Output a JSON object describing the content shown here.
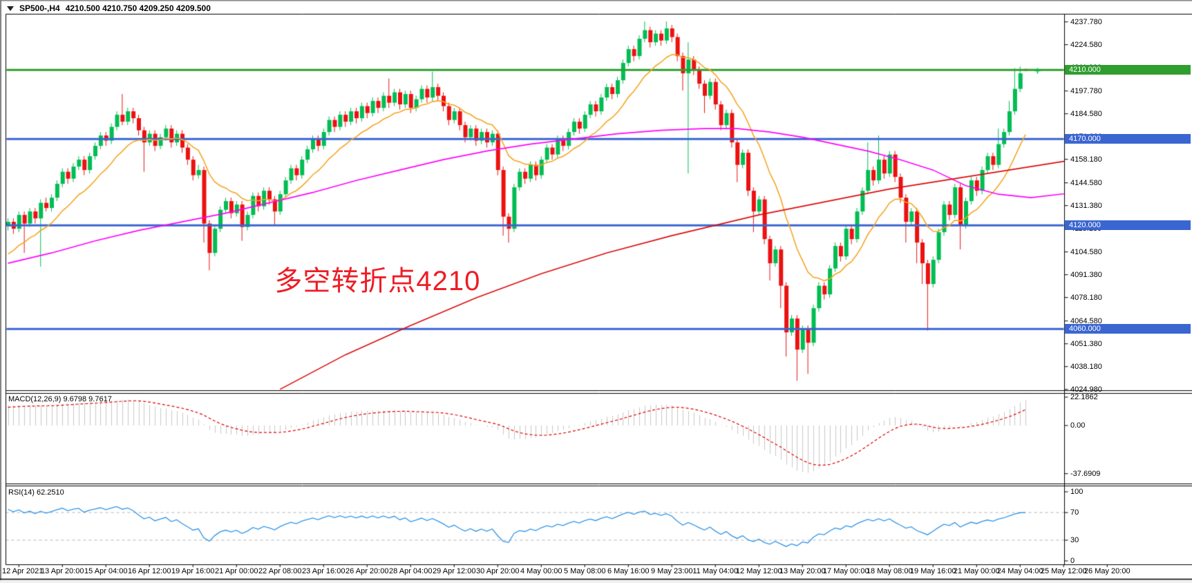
{
  "window": {
    "menu_icon": "chart-menu-triangle",
    "title_symbol": "SP500-,H4",
    "title_ohlc": "4210.500 4210.750 4209.250 4209.500"
  },
  "colors": {
    "up_candle": "#00bd53",
    "down_candle": "#ec1111",
    "hline_green": "#2f9e2f",
    "hline_blue": "#3a66d1",
    "ma_orange": "#f5a623",
    "ma_magenta": "#ff00ff",
    "ma_red": "#dd0a0a",
    "macd_hist": "#c8c8c8",
    "macd_signal": "#e00000",
    "rsi_line": "#2e95e8",
    "rsi_level_dash": "#b4b4b4",
    "annotation_red": "#ee1c25",
    "axis_text": "#000000",
    "pane_border": "#000000",
    "window_edge": "#808080",
    "bottom_strip": "#f0f0f0"
  },
  "chart_data": {
    "type": "candlestick",
    "symbol": "SP500-",
    "timeframe": "H4",
    "title": "SP500-,H4  4210.500 4210.750 4209.250 4209.500",
    "x_labels": [
      "12 Apr 2021",
      "13 Apr 20:00",
      "15 Apr 04:00",
      "16 Apr 12:00",
      "19 Apr 16:00",
      "21 Apr 00:00",
      "22 Apr 08:00",
      "23 Apr 16:00",
      "26 Apr 20:00",
      "28 Apr 04:00",
      "29 Apr 12:00",
      "30 Apr 20:00",
      "4 May 00:00",
      "5 May 08:00",
      "6 May 16:00",
      "9 May 23:00",
      "11 May 04:00",
      "12 May 12:00",
      "13 May 20:00",
      "17 May 00:00",
      "18 May 08:00",
      "19 May 16:00",
      "21 May 00:00",
      "24 May 04:00",
      "25 May 12:00",
      "26 May 20:00"
    ],
    "y_ticks": [
      4237.78,
      4224.58,
      4211.38,
      4197.78,
      4184.58,
      4171.38,
      4158.18,
      4144.58,
      4131.38,
      4118.18,
      4104.58,
      4091.38,
      4078.18,
      4064.58,
      4051.38,
      4038.18,
      4024.98
    ],
    "y_axis_range": {
      "top": 4246.4,
      "bottom": 4024.4
    },
    "hlines": [
      {
        "price": 4210.0,
        "label": "4210.000",
        "color": "#2f9e2f"
      },
      {
        "price": 4170.0,
        "label": "4170.000",
        "color": "#3a66d1"
      },
      {
        "price": 4120.0,
        "label": "4120.000",
        "color": "#3a66d1"
      },
      {
        "price": 4060.0,
        "label": "4060.000",
        "color": "#3a66d1"
      }
    ],
    "annotation": {
      "text": "多空转折点4210",
      "color": "#ee1c25",
      "bar": 49,
      "price": 4100
    },
    "current_price_marker": {
      "price": 4209.5,
      "color": "#00bd53"
    },
    "indicator_preroll_closes": [
      4037,
      4045.6,
      4042.2,
      4050.8,
      4047.4,
      4056,
      4052.6,
      4061.2,
      4057.8,
      4066.4,
      4063,
      4071.6,
      4068.2,
      4076.8,
      4073.4,
      4082,
      4078.6,
      4087.2,
      4083.8,
      4092.4,
      4089,
      4097.6,
      4094.2,
      4102.8,
      4099.4,
      4108,
      4104.6,
      4113.2,
      4109.8,
      4118.4
    ],
    "ma_lines": {
      "orange": {
        "type": "ema",
        "period": 13,
        "color": "#f5a623"
      },
      "magenta": {
        "type": "points",
        "color": "#ff00ff",
        "points": [
          [
            0,
            4098
          ],
          [
            8,
            4104
          ],
          [
            16,
            4111
          ],
          [
            24,
            4117
          ],
          [
            32,
            4122
          ],
          [
            40,
            4127
          ],
          [
            48,
            4133
          ],
          [
            56,
            4139
          ],
          [
            64,
            4146
          ],
          [
            72,
            4152
          ],
          [
            80,
            4158
          ],
          [
            88,
            4163
          ],
          [
            96,
            4167
          ],
          [
            104,
            4170
          ],
          [
            112,
            4173
          ],
          [
            120,
            4175
          ],
          [
            128,
            4176
          ],
          [
            134,
            4176
          ],
          [
            140,
            4174
          ],
          [
            146,
            4171
          ],
          [
            152,
            4167
          ],
          [
            158,
            4163
          ],
          [
            164,
            4158
          ],
          [
            170,
            4152
          ],
          [
            176,
            4143
          ],
          [
            182,
            4138
          ],
          [
            188,
            4136
          ],
          [
            196,
            4139
          ],
          [
            203,
            4143
          ]
        ]
      },
      "red": {
        "type": "points",
        "color": "#dd0a0a",
        "points": [
          [
            50,
            4025
          ],
          [
            62,
            4045
          ],
          [
            74,
            4062
          ],
          [
            86,
            4078
          ],
          [
            98,
            4092
          ],
          [
            110,
            4104
          ],
          [
            122,
            4114
          ],
          [
            130,
            4120
          ],
          [
            138,
            4126
          ],
          [
            146,
            4131
          ],
          [
            154,
            4136
          ],
          [
            162,
            4141
          ],
          [
            170,
            4145
          ],
          [
            178,
            4149
          ],
          [
            186,
            4153
          ],
          [
            194,
            4157
          ],
          [
            203,
            4161
          ]
        ]
      }
    },
    "candles": [
      [
        4120,
        4124,
        4117,
        4122
      ],
      [
        4122,
        4124,
        4115,
        4118
      ],
      [
        4118,
        4128,
        4116,
        4126
      ],
      [
        4126,
        4128,
        4104,
        4121
      ],
      [
        4121,
        4130,
        4119,
        4128
      ],
      [
        4128,
        4130,
        4121,
        4124
      ],
      [
        4124,
        4135,
        4096,
        4133
      ],
      [
        4133,
        4136,
        4128,
        4130
      ],
      [
        4130,
        4138,
        4128,
        4136
      ],
      [
        4136,
        4146,
        4134,
        4144
      ],
      [
        4144,
        4153,
        4142,
        4151
      ],
      [
        4151,
        4153,
        4144,
        4147
      ],
      [
        4147,
        4156,
        4145,
        4154
      ],
      [
        4154,
        4160,
        4152,
        4158
      ],
      [
        4158,
        4160,
        4149,
        4152
      ],
      [
        4152,
        4162,
        4150,
        4160
      ],
      [
        4160,
        4168,
        4158,
        4166
      ],
      [
        4166,
        4174,
        4164,
        4172
      ],
      [
        4172,
        4174,
        4166,
        4169
      ],
      [
        4169,
        4179,
        4167,
        4177
      ],
      [
        4177,
        4186,
        4175,
        4184
      ],
      [
        4184,
        4196,
        4178,
        4180
      ],
      [
        4180,
        4188,
        4178,
        4186
      ],
      [
        4186,
        4188,
        4179,
        4182
      ],
      [
        4182,
        4184,
        4172,
        4175
      ],
      [
        4175,
        4177,
        4151,
        4168
      ],
      [
        4168,
        4175,
        4166,
        4173
      ],
      [
        4173,
        4175,
        4163,
        4166
      ],
      [
        4166,
        4173,
        4164,
        4171
      ],
      [
        4171,
        4178,
        4169,
        4176
      ],
      [
        4176,
        4178,
        4165,
        4168
      ],
      [
        4168,
        4175,
        4166,
        4173
      ],
      [
        4173,
        4175,
        4162,
        4165
      ],
      [
        4165,
        4167,
        4155,
        4158
      ],
      [
        4158,
        4160,
        4146,
        4149
      ],
      [
        4149,
        4155,
        4147,
        4152
      ],
      [
        4152,
        4154,
        4110,
        4121
      ],
      [
        4121,
        4123,
        4094,
        4104
      ],
      [
        4104,
        4120,
        4102,
        4118
      ],
      [
        4118,
        4131,
        4116,
        4129
      ],
      [
        4129,
        4136,
        4127,
        4134
      ],
      [
        4134,
        4136,
        4124,
        4127
      ],
      [
        4127,
        4134,
        4125,
        4132
      ],
      [
        4132,
        4134,
        4111,
        4119
      ],
      [
        4119,
        4128,
        4117,
        4126
      ],
      [
        4126,
        4139,
        4124,
        4137
      ],
      [
        4137,
        4139,
        4128,
        4131
      ],
      [
        4131,
        4142,
        4129,
        4140
      ],
      [
        4140,
        4142,
        4132,
        4135
      ],
      [
        4135,
        4137,
        4120,
        4128
      ],
      [
        4128,
        4140,
        4126,
        4138
      ],
      [
        4138,
        4148,
        4136,
        4146
      ],
      [
        4146,
        4155,
        4144,
        4153
      ],
      [
        4153,
        4155,
        4146,
        4149
      ],
      [
        4149,
        4160,
        4147,
        4158
      ],
      [
        4158,
        4166,
        4156,
        4164
      ],
      [
        4164,
        4172,
        4162,
        4170
      ],
      [
        4170,
        4172,
        4163,
        4166
      ],
      [
        4166,
        4176,
        4164,
        4174
      ],
      [
        4174,
        4183,
        4172,
        4181
      ],
      [
        4181,
        4183,
        4174,
        4177
      ],
      [
        4177,
        4186,
        4175,
        4184
      ],
      [
        4184,
        4186,
        4177,
        4180
      ],
      [
        4180,
        4188,
        4178,
        4186
      ],
      [
        4186,
        4188,
        4179,
        4182
      ],
      [
        4182,
        4191,
        4180,
        4189
      ],
      [
        4189,
        4191,
        4182,
        4185
      ],
      [
        4185,
        4194,
        4183,
        4192
      ],
      [
        4192,
        4194,
        4185,
        4188
      ],
      [
        4188,
        4197,
        4186,
        4195
      ],
      [
        4195,
        4205,
        4188,
        4191
      ],
      [
        4191,
        4199,
        4189,
        4197
      ],
      [
        4197,
        4199,
        4187,
        4190
      ],
      [
        4190,
        4198,
        4188,
        4196
      ],
      [
        4196,
        4198,
        4185,
        4188
      ],
      [
        4188,
        4195,
        4186,
        4193
      ],
      [
        4193,
        4201,
        4191,
        4199
      ],
      [
        4199,
        4201,
        4191,
        4194
      ],
      [
        4194,
        4209,
        4192,
        4200
      ],
      [
        4200,
        4202,
        4192,
        4195
      ],
      [
        4195,
        4197,
        4186,
        4189
      ],
      [
        4189,
        4191,
        4178,
        4181
      ],
      [
        4181,
        4188,
        4179,
        4186
      ],
      [
        4186,
        4188,
        4175,
        4178
      ],
      [
        4178,
        4180,
        4168,
        4171
      ],
      [
        4171,
        4178,
        4169,
        4176
      ],
      [
        4176,
        4178,
        4166,
        4169
      ],
      [
        4169,
        4176,
        4167,
        4174
      ],
      [
        4174,
        4176,
        4165,
        4168
      ],
      [
        4168,
        4175,
        4166,
        4173
      ],
      [
        4173,
        4175,
        4149,
        4152
      ],
      [
        4152,
        4154,
        4114,
        4125
      ],
      [
        4125,
        4127,
        4110,
        4118
      ],
      [
        4118,
        4144,
        4116,
        4142
      ],
      [
        4142,
        4153,
        4140,
        4151
      ],
      [
        4151,
        4153,
        4144,
        4147
      ],
      [
        4147,
        4157,
        4145,
        4155
      ],
      [
        4155,
        4157,
        4146,
        4149
      ],
      [
        4149,
        4160,
        4147,
        4158
      ],
      [
        4158,
        4167,
        4156,
        4165
      ],
      [
        4165,
        4167,
        4158,
        4161
      ],
      [
        4161,
        4172,
        4159,
        4170
      ],
      [
        4170,
        4172,
        4163,
        4166
      ],
      [
        4166,
        4176,
        4164,
        4174
      ],
      [
        4174,
        4182,
        4172,
        4180
      ],
      [
        4180,
        4182,
        4173,
        4176
      ],
      [
        4176,
        4186,
        4174,
        4184
      ],
      [
        4184,
        4192,
        4182,
        4190
      ],
      [
        4190,
        4192,
        4183,
        4186
      ],
      [
        4186,
        4196,
        4184,
        4194
      ],
      [
        4194,
        4202,
        4192,
        4200
      ],
      [
        4200,
        4202,
        4193,
        4196
      ],
      [
        4196,
        4206,
        4194,
        4204
      ],
      [
        4204,
        4216,
        4202,
        4214
      ],
      [
        4214,
        4224,
        4212,
        4222
      ],
      [
        4222,
        4224,
        4215,
        4218
      ],
      [
        4218,
        4230,
        4216,
        4228
      ],
      [
        4228,
        4238,
        4226,
        4233
      ],
      [
        4233,
        4235,
        4223,
        4226
      ],
      [
        4226,
        4233,
        4224,
        4231
      ],
      [
        4231,
        4233,
        4224,
        4227
      ],
      [
        4227,
        4238,
        4225,
        4234
      ],
      [
        4234,
        4236,
        4226,
        4229
      ],
      [
        4229,
        4231,
        4215,
        4218
      ],
      [
        4218,
        4220,
        4198,
        4208
      ],
      [
        4208,
        4226,
        4150,
        4216
      ],
      [
        4216,
        4218,
        4207,
        4210
      ],
      [
        4210,
        4212,
        4199,
        4202
      ],
      [
        4202,
        4204,
        4185,
        4195
      ],
      [
        4195,
        4205,
        4193,
        4203
      ],
      [
        4203,
        4205,
        4187,
        4190
      ],
      [
        4190,
        4192,
        4175,
        4178
      ],
      [
        4178,
        4187,
        4176,
        4185
      ],
      [
        4185,
        4187,
        4165,
        4168
      ],
      [
        4168,
        4170,
        4145,
        4155
      ],
      [
        4155,
        4164,
        4153,
        4162
      ],
      [
        4162,
        4164,
        4137,
        4140
      ],
      [
        4140,
        4142,
        4116,
        4128
      ],
      [
        4128,
        4137,
        4126,
        4135
      ],
      [
        4135,
        4137,
        4109,
        4112
      ],
      [
        4112,
        4114,
        4088,
        4098
      ],
      [
        4098,
        4108,
        4096,
        4106
      ],
      [
        4106,
        4108,
        4072,
        4085
      ],
      [
        4085,
        4087,
        4044,
        4058
      ],
      [
        4058,
        4068,
        4056,
        4066
      ],
      [
        4066,
        4068,
        4030,
        4048
      ],
      [
        4048,
        4062,
        4046,
        4060
      ],
      [
        4060,
        4062,
        4034,
        4052
      ],
      [
        4052,
        4074,
        4050,
        4072
      ],
      [
        4072,
        4087,
        4070,
        4085
      ],
      [
        4085,
        4087,
        4077,
        4080
      ],
      [
        4080,
        4097,
        4078,
        4095
      ],
      [
        4095,
        4110,
        4093,
        4108
      ],
      [
        4108,
        4110,
        4099,
        4102
      ],
      [
        4102,
        4120,
        4100,
        4118
      ],
      [
        4118,
        4120,
        4109,
        4112
      ],
      [
        4112,
        4130,
        4110,
        4128
      ],
      [
        4128,
        4142,
        4126,
        4140
      ],
      [
        4140,
        4168,
        4138,
        4152
      ],
      [
        4152,
        4154,
        4143,
        4146
      ],
      [
        4146,
        4172,
        4144,
        4158
      ],
      [
        4158,
        4160,
        4147,
        4150
      ],
      [
        4150,
        4163,
        4148,
        4161
      ],
      [
        4161,
        4163,
        4145,
        4148
      ],
      [
        4148,
        4150,
        4133,
        4136
      ],
      [
        4136,
        4138,
        4110,
        4122
      ],
      [
        4122,
        4130,
        4120,
        4128
      ],
      [
        4128,
        4130,
        4098,
        4110
      ],
      [
        4110,
        4112,
        4086,
        4098
      ],
      [
        4098,
        4100,
        4059,
        4086
      ],
      [
        4086,
        4102,
        4084,
        4100
      ],
      [
        4100,
        4118,
        4098,
        4116
      ],
      [
        4116,
        4134,
        4114,
        4132
      ],
      [
        4132,
        4134,
        4123,
        4126
      ],
      [
        4126,
        4144,
        4124,
        4142
      ],
      [
        4142,
        4144,
        4106,
        4120
      ],
      [
        4120,
        4136,
        4118,
        4134
      ],
      [
        4134,
        4148,
        4132,
        4146
      ],
      [
        4146,
        4148,
        4137,
        4140
      ],
      [
        4140,
        4154,
        4138,
        4152
      ],
      [
        4152,
        4162,
        4150,
        4160
      ],
      [
        4160,
        4162,
        4152,
        4155
      ],
      [
        4155,
        4176,
        4153,
        4167
      ],
      [
        4167,
        4176,
        4165,
        4174
      ],
      [
        4174,
        4192,
        4172,
        4186
      ],
      [
        4186,
        4211,
        4184,
        4199
      ],
      [
        4199,
        4212,
        4197,
        4208
      ],
      [
        4210.5,
        4210.75,
        4209.25,
        4209.5
      ]
    ]
  },
  "macd_panel": {
    "label": "MACD(12,26,9)",
    "values": "9.6798 9.7617",
    "fast": 12,
    "slow": 26,
    "signal": 9,
    "ticks": [
      "22.1862",
      "0.00",
      "-37.6909"
    ],
    "tick_values": [
      22.1862,
      0,
      -37.6909
    ]
  },
  "rsi_panel": {
    "label": "RSI(14)",
    "value": "62.2510",
    "period": 14,
    "ticks": [
      "100",
      "70",
      "30",
      "0"
    ],
    "tick_values": [
      100,
      70,
      30,
      0
    ],
    "level_lines": [
      70,
      30
    ]
  }
}
